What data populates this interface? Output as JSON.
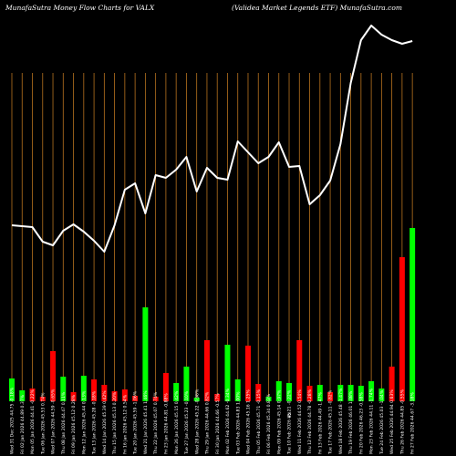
{
  "header": {
    "left_title": "MunafaSutra  Money Flow  Charts for VALX",
    "right_title": "(Validea  Market Legends ETF)  MunafaSutra.com"
  },
  "colors": {
    "background": "#000000",
    "grid": "#b8731f",
    "up_bar": "#00ff00",
    "down_bar": "#ff0000",
    "price_line": "#ffffff",
    "text": "#ffffff"
  },
  "axis_marker": "Vol",
  "chart_data": {
    "type": "bar",
    "title": "MunafaSutra  Money Flow  Charts for VALX",
    "subtitle": "(Validea  Market Legends ETF)  MunafaSutra.com",
    "categories": [
      "Fri 27 Feb 2026 44.67 -3.18%",
      "Thu 26 Feb 2026 44.85 -0.55%",
      "Wed 25 Feb 2026 44.94 0.63%",
      "Tue 24 Feb 2026 45.03 -1.04%",
      "Mon 23 Feb 2026 44.11 -1.74%",
      "Fri 20 Feb 2026 46.23 -0.58%",
      "Thu 19 Feb 2026 46.01 1.08%",
      "Wed 18 Feb 2026 45.48 -1.47%",
      "Tue 17 Feb 2026 45.11 -0.82%",
      "Fri 13 Feb 2026 44.49 -1.47%",
      "Thu 12 Feb 2026 44.78 -0.28%",
      "Wed 11 Feb 2026 44.52 0.54%",
      "Tue 10 Feb 2026 45.21 -0.22%",
      "Mon 09 Feb 2026 45.14 0.97%",
      "Fri 06 Feb 2026 45.34 0.83%",
      "Thu 05 Feb 2026 45.71 -0.15%",
      "Wed 04 Feb 2026 45.16 1.25%",
      "Tue 03 Feb 2026 44.83 1.00%",
      "Mon 02 Feb 2026 44.62 -0.34%",
      "Fri 30 Jan 2026 44.66 -0.57%",
      "Thu 29 Jan 2026 44.66 0.82%",
      "Wed 28 Jan 2026 45.22 -0.98%",
      "Tue 27 Jan 2026 45.23 -0.10%",
      "Mon 26 Jan 2026 45.15 0.42%",
      "Fri 23 Jan 2026 44.81 -0.88%",
      "Thu 22 Jan 2026 45.07 0.74%",
      "Wed 21 Jan 2026 45.41 1.46%",
      "Tue 20 Jan 2026 45.59 -1.06%",
      "Fri 16 Jan 2026 45.12 0.54%",
      "Thu 15 Jan 2026 45.13 0.20%",
      "Wed 14 Jan 2026 45.39 0.42%",
      "Tue 13 Jan 2026 45.28 -0.18%",
      "Mon 12 Jan 2026 45.44 0.13%",
      "Fri 09 Jan 2026 45.12 0.28%",
      "Thu 08 Jan 2026 44.47 0.11%",
      "Wed 07 Jan 2026 44.59 -0.65%",
      "Tue 06 Jan 2026 45.53 0.74%",
      "Mon 05 Jan 2026 44.41 -0.22%",
      "Fri 02 Jan 2026 44.89 0.37%",
      "Wed 31 Dec 2025 44.75 -0.18%"
    ],
    "series": [
      {
        "values": [
          25,
          12,
          14,
          5,
          55,
          27,
          10,
          28,
          24,
          18,
          11,
          13,
          6,
          103,
          5,
          31,
          20,
          38,
          4,
          67,
          8,
          62,
          24,
          61,
          19,
          5,
          22,
          20,
          67,
          17,
          18,
          10,
          18,
          18,
          17,
          22,
          14,
          38,
          158,
          190
        ]
      }
    ],
    "bar_directions": [
      "up",
      "up",
      "down",
      "down",
      "down",
      "up",
      "down",
      "up",
      "down",
      "down",
      "down",
      "down",
      "down",
      "up",
      "down",
      "down",
      "up",
      "up",
      "up",
      "down",
      "down",
      "up",
      "up",
      "down",
      "down",
      "up",
      "up",
      "up",
      "down",
      "down",
      "up",
      "down",
      "up",
      "up",
      "up",
      "up",
      "up",
      "down",
      "down",
      "up"
    ],
    "price_line": [
      193,
      192,
      191,
      175,
      171,
      187,
      194,
      186,
      176,
      164,
      193,
      232,
      239,
      206,
      248,
      245,
      254,
      268,
      230,
      256,
      245,
      243,
      285,
      273,
      261,
      268,
      284,
      257,
      258,
      216,
      226,
      242,
      282,
      349,
      396,
      412,
      402,
      396,
      392,
      395
    ],
    "price_line_order": "left_to_right",
    "ylabel": "Vol",
    "grid": true
  }
}
